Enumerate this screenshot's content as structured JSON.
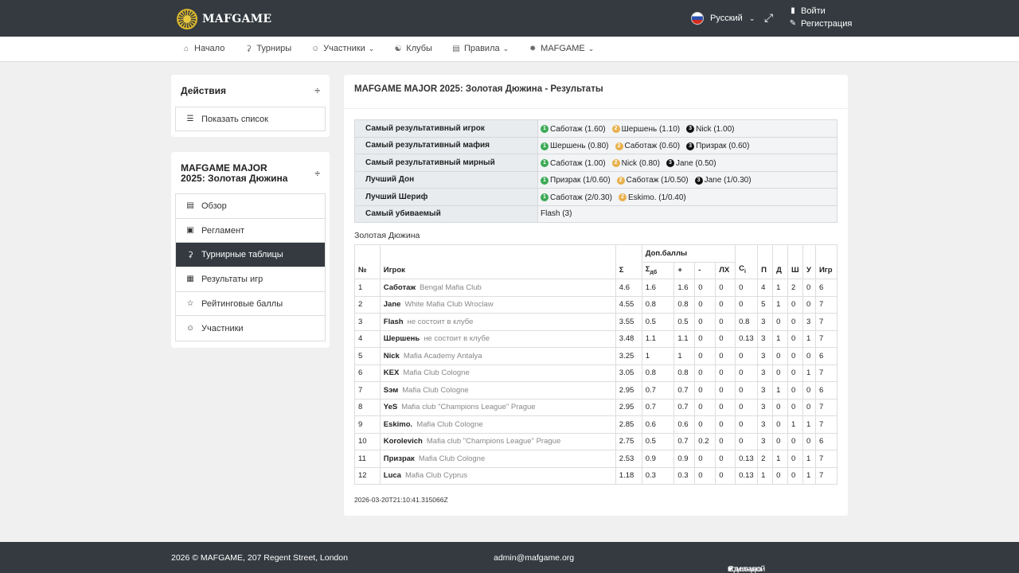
{
  "header": {
    "logo_text": "MAFGAME",
    "language": "Русский",
    "login": "Войти",
    "register": "Регистрация"
  },
  "nav": [
    {
      "label": "Начало",
      "icon": "home-icon",
      "dropdown": false
    },
    {
      "label": "Турниры",
      "icon": "trophy-icon",
      "dropdown": false
    },
    {
      "label": "Участники",
      "icon": "user-icon",
      "dropdown": true
    },
    {
      "label": "Клубы",
      "icon": "users-icon",
      "dropdown": false
    },
    {
      "label": "Правила",
      "icon": "book-icon",
      "dropdown": true
    },
    {
      "label": "MAFGAME",
      "icon": "logo-icon",
      "dropdown": true
    }
  ],
  "sidebar": {
    "actions_title": "Действия",
    "show_list": "Показать список",
    "tournament_title": "MAFGAME MAJOR 2025: Золотая Дюжина",
    "menu": [
      {
        "label": "Обзор",
        "icon": "overview-icon",
        "active": false
      },
      {
        "label": "Регламент",
        "icon": "document-icon",
        "active": false
      },
      {
        "label": "Турнирные таблицы",
        "icon": "trophy-icon",
        "active": true
      },
      {
        "label": "Результаты игр",
        "icon": "table-icon",
        "active": false
      },
      {
        "label": "Рейтинговые баллы",
        "icon": "star-icon",
        "active": false
      },
      {
        "label": "Участники",
        "icon": "user-icon",
        "active": false
      }
    ]
  },
  "main": {
    "title": "MAFGAME MAJOR 2025: Золотая Дюжина - Результаты",
    "awards": [
      {
        "label": "Самый результативный игрок",
        "entries": [
          {
            "rank": "1",
            "text": "Саботаж (1.60)"
          },
          {
            "rank": "2",
            "text": "Шершень (1.10)"
          },
          {
            "rank": "3",
            "text": "Nick (1.00)"
          }
        ]
      },
      {
        "label": "Самый результативный мафия",
        "entries": [
          {
            "rank": "1",
            "text": "Шершень (0.80)"
          },
          {
            "rank": "2",
            "text": "Саботаж (0.60)"
          },
          {
            "rank": "3",
            "text": "Призрак (0.60)"
          }
        ]
      },
      {
        "label": "Самый результативный мирный",
        "entries": [
          {
            "rank": "1",
            "text": "Саботаж (1.00)"
          },
          {
            "rank": "2",
            "text": "Nick (0.80)"
          },
          {
            "rank": "3",
            "text": "Jane (0.50)"
          }
        ]
      },
      {
        "label": "Лучший Дон",
        "entries": [
          {
            "rank": "1",
            "text": "Призрак (1/0.60)"
          },
          {
            "rank": "2",
            "text": "Саботаж (1/0.50)"
          },
          {
            "rank": "3",
            "text": "Jane (1/0.30)"
          }
        ]
      },
      {
        "label": "Лучший Шериф",
        "entries": [
          {
            "rank": "1",
            "text": "Саботаж (2/0.30)"
          },
          {
            "rank": "2",
            "text": "Eskimo. (1/0.40)"
          }
        ]
      },
      {
        "label": "Самый убиваемый",
        "entries": [
          {
            "rank": "",
            "text": "Flash (3)"
          }
        ]
      }
    ],
    "table_title": "Золотая Дюжина",
    "columns": {
      "num": "№",
      "player": "Игрок",
      "sum": "Σ",
      "bonus_group": "Доп.баллы",
      "sum_db": "Σ",
      "sum_db_sub": "дб",
      "plus": "+",
      "minus": "-",
      "lh": "ЛХ",
      "ci": "C",
      "ci_sub": "i",
      "p": "П",
      "d": "Д",
      "sh": "Ш",
      "u": "У",
      "games": "Игр"
    },
    "rows": [
      [
        "1",
        "Саботаж",
        "Bengal Mafia Club",
        "4.6",
        "1.6",
        "1.6",
        "0",
        "0",
        "0",
        "4",
        "1",
        "2",
        "0",
        "6"
      ],
      [
        "2",
        "Jane",
        "White Mafia Club Wroclaw",
        "4.55",
        "0.8",
        "0.8",
        "0",
        "0",
        "0",
        "5",
        "1",
        "0",
        "0",
        "7"
      ],
      [
        "3",
        "Flash",
        "не состоит в клубе",
        "3.55",
        "0.5",
        "0.5",
        "0",
        "0",
        "0.8",
        "3",
        "0",
        "0",
        "3",
        "7"
      ],
      [
        "4",
        "Шершень",
        "не состоит в клубе",
        "3.48",
        "1.1",
        "1.1",
        "0",
        "0",
        "0.13",
        "3",
        "1",
        "0",
        "1",
        "7"
      ],
      [
        "5",
        "Nick",
        "Mafia Academy Antalya",
        "3.25",
        "1",
        "1",
        "0",
        "0",
        "0",
        "3",
        "0",
        "0",
        "0",
        "6"
      ],
      [
        "6",
        "KEX",
        "Mafia Club Cologne",
        "3.05",
        "0.8",
        "0.8",
        "0",
        "0",
        "0",
        "3",
        "0",
        "0",
        "1",
        "7"
      ],
      [
        "7",
        "Sэм",
        "Mafia Club Cologne",
        "2.95",
        "0.7",
        "0.7",
        "0",
        "0",
        "0",
        "3",
        "1",
        "0",
        "0",
        "6"
      ],
      [
        "8",
        "YeS",
        "Mafia club \"Champions League\" Prague",
        "2.95",
        "0.7",
        "0.7",
        "0",
        "0",
        "0",
        "3",
        "0",
        "0",
        "0",
        "7"
      ],
      [
        "9",
        "Eskimo.",
        "Mafia Club Cologne",
        "2.85",
        "0.6",
        "0.6",
        "0",
        "0",
        "0",
        "3",
        "0",
        "1",
        "1",
        "7"
      ],
      [
        "10",
        "Korolevich",
        "Mafia club \"Champions League\" Prague",
        "2.75",
        "0.5",
        "0.7",
        "0.2",
        "0",
        "0",
        "3",
        "0",
        "0",
        "0",
        "6"
      ],
      [
        "11",
        "Призрак",
        "Mafia Club Cologne",
        "2.53",
        "0.9",
        "0.9",
        "0",
        "0",
        "0.13",
        "2",
        "1",
        "0",
        "1",
        "7"
      ],
      [
        "12",
        "Luca",
        "Mafia Club Cyprus",
        "1.18",
        "0.3",
        "0.3",
        "0",
        "0",
        "0.13",
        "1",
        "0",
        "0",
        "1",
        "7"
      ]
    ],
    "timestamp": "2026-03-20T21:10:41.315066Z"
  },
  "footer": {
    "copyright": "2026 © MAFGAME, 207 Regent Street, London",
    "email": "admin@mafgame.org",
    "made_prefix": "Сделано с",
    "made_suffix": "командой MAFGAME"
  },
  "colors": {
    "dark": "#343a40",
    "gold": "#d9b62c",
    "medal1": "#3caa55",
    "medal2": "#e8b04a",
    "medal3": "#111111"
  }
}
